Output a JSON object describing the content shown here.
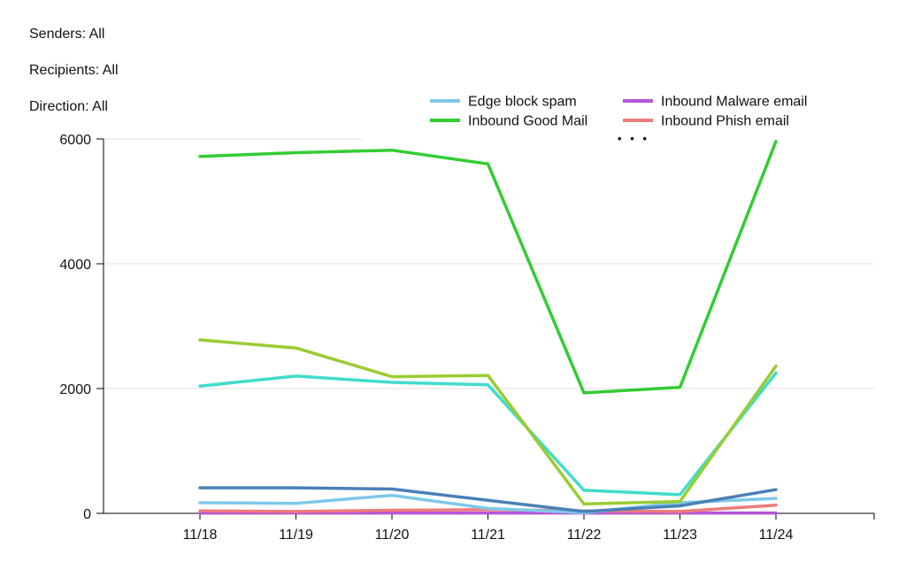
{
  "filters": {
    "senders": "Senders: All",
    "recipients": "Recipients: All",
    "direction": "Direction: All"
  },
  "legend_more": "• • •",
  "chart_data": {
    "type": "line",
    "x": [
      "11/18",
      "11/19",
      "11/20",
      "11/21",
      "11/22",
      "11/23",
      "11/24"
    ],
    "ylim": [
      0,
      6000
    ],
    "yticks": [
      0,
      2000,
      4000,
      6000
    ],
    "grid": true,
    "legend_position": "top-right",
    "legend": [
      {
        "name": "Edge block spam",
        "color": "#7ec8ea"
      },
      {
        "name": "Inbound Malware email",
        "color": "#b455d8"
      },
      {
        "name": "Inbound Good Mail",
        "color": "#33cc33"
      },
      {
        "name": "Inbound Phish email",
        "color": "#ee7b7b"
      }
    ],
    "series": [
      {
        "name": "Inbound Good Mail",
        "color": "#33cc33",
        "values": [
          5720,
          5780,
          5820,
          5600,
          1930,
          2020,
          5960
        ]
      },
      {
        "color": "#99cc33",
        "values": [
          2780,
          2650,
          2190,
          2210,
          150,
          190,
          2360
        ]
      },
      {
        "color": "#40dccc",
        "values": [
          2040,
          2200,
          2100,
          2060,
          370,
          300,
          2250
        ]
      },
      {
        "color": "#4a80b8",
        "values": [
          410,
          410,
          390,
          210,
          30,
          120,
          380
        ]
      },
      {
        "name": "Edge block spam",
        "color": "#7ec8ea",
        "values": [
          170,
          160,
          290,
          80,
          10,
          170,
          240
        ]
      },
      {
        "name": "Inbound Phish email",
        "color": "#ee7b7b",
        "values": [
          40,
          30,
          50,
          60,
          40,
          30,
          130
        ]
      },
      {
        "name": "Inbound Malware email",
        "color": "#b455d8",
        "values": [
          5,
          5,
          5,
          5,
          5,
          5,
          5
        ]
      }
    ]
  }
}
